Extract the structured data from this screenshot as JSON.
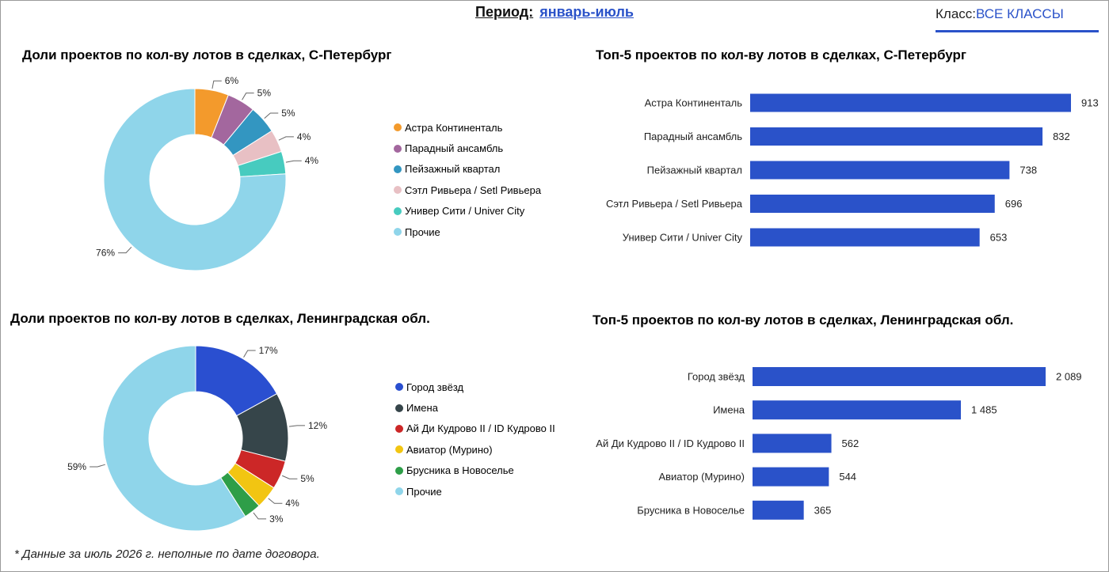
{
  "header": {
    "period_label": "Период:",
    "period_value": "январь-июль",
    "class_label": "Класс:",
    "class_value": "ВСЕ КЛАССЫ"
  },
  "footnote": "* Данные за июль 2026 г. неполные по дате договора.",
  "chart_data": [
    {
      "type": "pie",
      "title": "Доли проектов по кол-ву лотов в сделках, С-Петербург",
      "categories": [
        "Астра Континенталь",
        "Парадный ансамбль",
        "Пейзажный квартал",
        "Сэтл Ривьера / Setl Ривьера",
        "Универ Сити / Univer City",
        "Прочие"
      ],
      "values": [
        6,
        5,
        5,
        4,
        4,
        76
      ],
      "labels": [
        "6%",
        "5%",
        "5%",
        "4%",
        "4%",
        "76%"
      ],
      "colors": [
        "#f39a2c",
        "#a3679e",
        "#3396c1",
        "#e8c0c4",
        "#47cbbf",
        "#8fd5ea"
      ],
      "legend": "right"
    },
    {
      "type": "bar",
      "orientation": "horizontal",
      "title": "Топ-5 проектов по кол-ву лотов в сделках, С-Петербург",
      "categories": [
        "Астра Континенталь",
        "Парадный ансамбль",
        "Пейзажный квартал",
        "Сэтл Ривьера / Setl Ривьера",
        "Универ Сити / Univer City"
      ],
      "values": [
        913,
        832,
        738,
        696,
        653
      ],
      "labels": [
        "913",
        "832",
        "738",
        "696",
        "653"
      ],
      "color": "#2a52c9"
    },
    {
      "type": "pie",
      "title": "Доли проектов по кол-ву лотов в сделках, Ленинградская обл.",
      "categories": [
        "Город звёзд",
        "Имена",
        "Ай Ди Кудрово II / ID Кудрово II",
        "Авиатор (Мурино)",
        "Брусника в Новоселье",
        "Прочие"
      ],
      "values": [
        17,
        12,
        5,
        4,
        3,
        59
      ],
      "labels": [
        "17%",
        "12%",
        "5%",
        "4%",
        "3%",
        "59%"
      ],
      "colors": [
        "#2a4fd0",
        "#36454a",
        "#cc2727",
        "#f2c512",
        "#2e9e48",
        "#8fd5ea"
      ],
      "legend": "right"
    },
    {
      "type": "bar",
      "orientation": "horizontal",
      "title": "Топ-5 проектов по кол-ву лотов в сделках, Ленинградская обл.",
      "categories": [
        "Город звёзд",
        "Имена",
        "Ай Ди Кудрово II / ID Кудрово II",
        "Авиатор (Мурино)",
        "Брусника в Новоселье"
      ],
      "values": [
        2089,
        1485,
        562,
        544,
        365
      ],
      "labels": [
        "2 089",
        "1 485",
        "562",
        "544",
        "365"
      ],
      "color": "#2a52c9"
    }
  ]
}
